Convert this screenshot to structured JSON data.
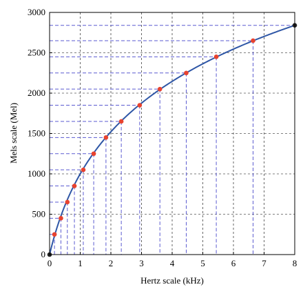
{
  "chart_data": {
    "type": "line",
    "title": "",
    "xlabel": "Hertz scale (kHz)",
    "ylabel": "Mels scale (Mel)",
    "xlim": [
      0,
      8
    ],
    "ylim": [
      0,
      3000
    ],
    "xticks": [
      0,
      1,
      2,
      3,
      4,
      5,
      6,
      7,
      8
    ],
    "yticks": [
      0,
      500,
      1000,
      1500,
      2000,
      2500,
      3000
    ],
    "grid": true,
    "legend": "none",
    "series": [
      {
        "curve": "mel = 2595 * log10(1 + f / 0.7)",
        "color": "#2e56a6",
        "points_black": [
          {
            "x": 0,
            "y": 0
          },
          {
            "x": 8,
            "y": 2840
          }
        ],
        "points_red": [
          {
            "x": 0.16,
            "y": 250
          },
          {
            "x": 0.37,
            "y": 450
          },
          {
            "x": 0.58,
            "y": 650
          },
          {
            "x": 0.81,
            "y": 850
          },
          {
            "x": 1.1,
            "y": 1050
          },
          {
            "x": 1.44,
            "y": 1250
          },
          {
            "x": 1.84,
            "y": 1450
          },
          {
            "x": 2.34,
            "y": 1650
          },
          {
            "x": 2.94,
            "y": 1850
          },
          {
            "x": 3.6,
            "y": 2050
          },
          {
            "x": 4.46,
            "y": 2250
          },
          {
            "x": 5.44,
            "y": 2450
          },
          {
            "x": 6.64,
            "y": 2650
          }
        ]
      }
    ],
    "colors": {
      "curve": "#2e56a6",
      "marker_red": "#e8432f",
      "marker_black": "#222222",
      "dashed_lines": "#5a5ad0",
      "grid": "#000000"
    }
  }
}
